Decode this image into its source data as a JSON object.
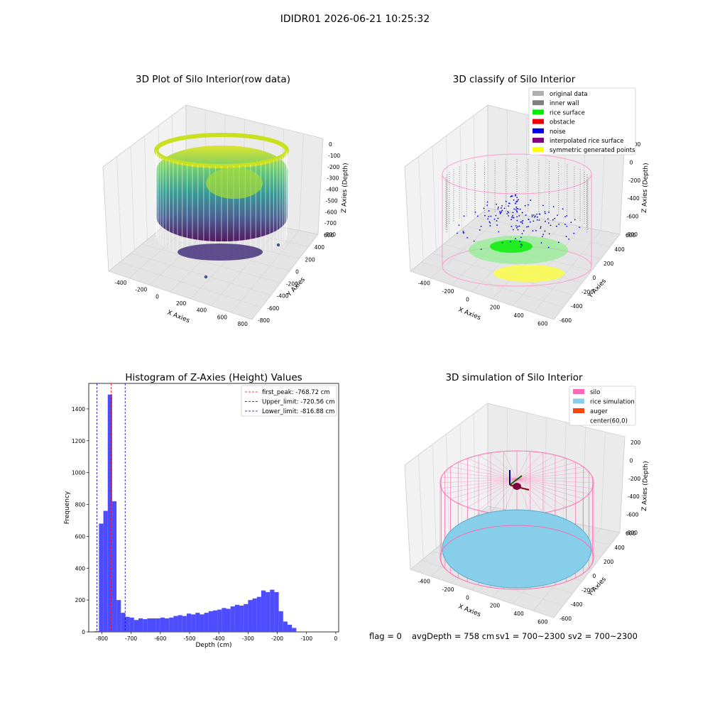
{
  "suptitle": "IDIDR01 2026-06-21 10:25:32",
  "panels": {
    "raw": {
      "title": "3D Plot of Silo Interior(row data)",
      "xlabel": "X Axies",
      "ylabel": "Y Axies",
      "zlabel": "Z Axies (Depth)",
      "xticks": [
        "-400",
        "-200",
        "0",
        "200",
        "400",
        "600",
        "800"
      ],
      "yticks": [
        "-800",
        "-600",
        "-400",
        "-200",
        "0",
        "200",
        "400",
        "600"
      ],
      "zticks": [
        "0",
        "-100",
        "-200",
        "-300",
        "-400",
        "-500",
        "-600",
        "-700",
        "-800"
      ]
    },
    "classify": {
      "title": "3D classify of Silo Interior",
      "xlabel": "X Axies",
      "ylabel": "Y Axies",
      "zlabel": "Z Axies (Depth)",
      "xticks": [
        "-400",
        "-200",
        "0",
        "200",
        "400",
        "600"
      ],
      "yticks": [
        "-600",
        "-400",
        "-200",
        "0",
        "200",
        "400",
        "600"
      ],
      "zticks": [
        "200",
        "0",
        "-200",
        "-400",
        "-600",
        "-800"
      ],
      "legend": [
        {
          "label": "original data",
          "color": "#b0b0b0"
        },
        {
          "label": "inner wall",
          "color": "#808080"
        },
        {
          "label": "rice surface",
          "color": "#00ee00"
        },
        {
          "label": "obstacle",
          "color": "#ee0000"
        },
        {
          "label": "noise",
          "color": "#0000ee"
        },
        {
          "label": "interpolated rice surface",
          "color": "#800080"
        },
        {
          "label": "symmetric generated points",
          "color": "#ffff00"
        }
      ]
    },
    "simulation": {
      "title": "3D simulation of Silo Interior",
      "xlabel": "X Axies",
      "ylabel": "Y Axies",
      "zlabel": "Z Axies (Depth)",
      "xticks": [
        "-400",
        "-200",
        "0",
        "200",
        "400",
        "600"
      ],
      "yticks": [
        "-600",
        "-400",
        "-200",
        "0",
        "200",
        "400",
        "600"
      ],
      "zticks": [
        "200",
        "0",
        "-200",
        "-400",
        "-600",
        "-800"
      ],
      "legend": [
        {
          "label": "silo",
          "color": "#ff69b4"
        },
        {
          "label": "rice simulation",
          "color": "#87ceeb"
        },
        {
          "label": "auger",
          "color": "#ff4500"
        },
        {
          "label": "center(60,0)",
          "color": ""
        }
      ]
    }
  },
  "footer": {
    "flag": "flag = 0",
    "avg": "avgDepth = 758 cm",
    "sv1": "sv1 = 700~2300",
    "sv2": "sv2 = 700~2300"
  },
  "chart_data": {
    "type": "bar",
    "title": "Histogram of Z-Axies (Height) Values",
    "xlabel": "Depth (cm)",
    "ylabel": "Frequency",
    "xlim": [
      -845,
      10
    ],
    "ylim": [
      0,
      1560
    ],
    "xticks": [
      -800,
      -700,
      -600,
      -500,
      -400,
      -300,
      -200,
      -100,
      0
    ],
    "yticks": [
      0,
      200,
      400,
      600,
      800,
      1000,
      1200,
      1400
    ],
    "bin_width": 15,
    "bin_start": -825,
    "values": [
      5,
      680,
      760,
      1490,
      820,
      200,
      120,
      95,
      90,
      75,
      85,
      80,
      85,
      85,
      85,
      90,
      85,
      90,
      100,
      105,
      100,
      115,
      110,
      120,
      110,
      120,
      130,
      135,
      140,
      150,
      145,
      160,
      170,
      165,
      175,
      200,
      210,
      220,
      260,
      250,
      265,
      250,
      130,
      65,
      45,
      25
    ],
    "bar_color": "#4d4dff",
    "reference_lines": [
      {
        "label": "first_peak: -768.72 cm",
        "value": -768.72,
        "color": "#ff0000"
      },
      {
        "label": "Upper_limit: -720.56 cm",
        "value": -720.56,
        "color": "#0000aa"
      },
      {
        "label": "Lower_limit: -816.88 cm",
        "value": -816.88,
        "color": "#0000aa"
      }
    ],
    "legend_position": "upper right"
  }
}
